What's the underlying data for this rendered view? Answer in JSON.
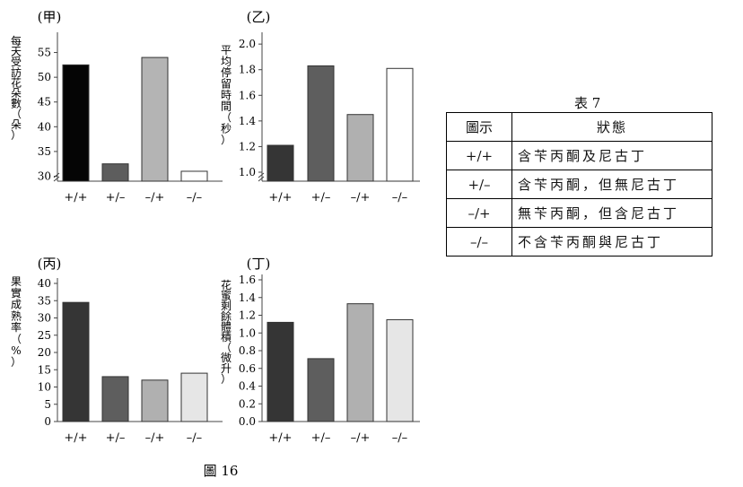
{
  "figure_caption": "圖 16",
  "table": {
    "title": "表 7",
    "headers": [
      "圖示",
      "狀態"
    ],
    "rows": [
      [
        "+/+",
        "含苄丙酮及尼古丁"
      ],
      [
        "+/–",
        "含苄丙酮，但無尼古丁"
      ],
      [
        "–/+",
        "無苄丙酮，但含尼古丁"
      ],
      [
        "–/–",
        "不含苄丙酮與尼古丁"
      ]
    ]
  },
  "chart_data": [
    {
      "type": "bar",
      "panel": "(甲)",
      "ylabel": "每天受訪花朵數（朵）",
      "categories": [
        "+/+",
        "+/–",
        "–/+",
        "–/–"
      ],
      "values": [
        52.5,
        32.5,
        54,
        31
      ],
      "ylim": [
        29,
        58
      ],
      "yticks": [
        30,
        35,
        40,
        45,
        50,
        55
      ],
      "axis_break": true,
      "colors": [
        "#050505",
        "#5d5d5d",
        "#b4b4b4",
        "#ffffff"
      ]
    },
    {
      "type": "bar",
      "panel": "(乙)",
      "ylabel": "平均停留時間（秒）",
      "categories": [
        "+/+",
        "+/–",
        "–/+",
        "–/–"
      ],
      "values": [
        1.21,
        1.83,
        1.45,
        1.81
      ],
      "ylim": [
        0.93,
        2.05
      ],
      "yticks": [
        1.0,
        1.2,
        1.4,
        1.6,
        1.8,
        2.0
      ],
      "axis_break": true,
      "colors": [
        "#353535",
        "#5e5e5e",
        "#b0b0b0",
        "#ffffff"
      ]
    },
    {
      "type": "bar",
      "panel": "(丙)",
      "ylabel": "果實成熟率（%）",
      "categories": [
        "+/+",
        "+/–",
        "–/+",
        "–/–"
      ],
      "values": [
        34.5,
        13,
        12,
        14
      ],
      "ylim": [
        0,
        40
      ],
      "yticks": [
        0,
        5,
        10,
        15,
        20,
        25,
        30,
        35,
        40
      ],
      "axis_break": false,
      "colors": [
        "#353535",
        "#5e5e5e",
        "#b0b0b0",
        "#e6e6e6"
      ]
    },
    {
      "type": "bar",
      "panel": "(丁)",
      "ylabel": "花蜜剩餘體積（微升）",
      "categories": [
        "+/+",
        "+/–",
        "–/+",
        "–/–"
      ],
      "values": [
        1.12,
        0.71,
        1.33,
        1.15
      ],
      "ylim": [
        0,
        1.6
      ],
      "yticks": [
        0.0,
        0.2,
        0.4,
        0.6,
        0.8,
        1.0,
        1.2,
        1.4,
        1.6
      ],
      "axis_break": false,
      "colors": [
        "#353535",
        "#5e5e5e",
        "#b0b0b0",
        "#e6e6e6"
      ]
    }
  ]
}
